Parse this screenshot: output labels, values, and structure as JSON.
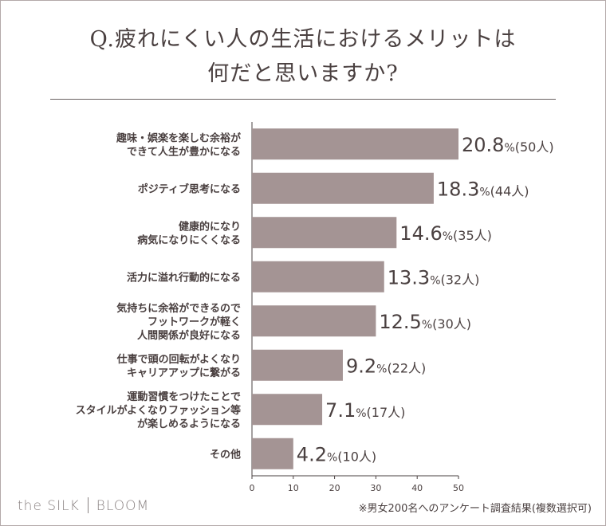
{
  "title_lines": [
    "Q.疲れにくい人の生活におけるメリットは",
    "何だと思いますか?"
  ],
  "chart_data": {
    "type": "bar",
    "orientation": "horizontal",
    "categories": [
      [
        "趣味・娯楽を楽しむ余裕が",
        "できて人生が豊かになる"
      ],
      [
        "ポジティブ思考になる"
      ],
      [
        "健康的になり",
        "病気になりにくくなる"
      ],
      [
        "活力に溢れ行動的になる"
      ],
      [
        "気持ちに余裕ができるので",
        "フットワークが軽く",
        "人間関係が良好になる"
      ],
      [
        "仕事で頭の回転がよくなり",
        "キャリアアップに繋がる"
      ],
      [
        "運動習慣をつけたことで",
        "スタイルがよくなりファッション等",
        "が楽しめるようになる"
      ],
      [
        "その他"
      ]
    ],
    "values": [
      50,
      44,
      35,
      32,
      30,
      22,
      17,
      10
    ],
    "percent_labels": [
      "20.8",
      "18.3",
      "14.6",
      "13.3",
      "12.5",
      "9.2",
      "7.1",
      "4.2"
    ],
    "count_labels": [
      "(50人)",
      "(44人)",
      "(35人)",
      "(32人)",
      "(30人)",
      "(22人)",
      "(17人)",
      "(10人)"
    ],
    "percent_sign": "%",
    "xlim": [
      0,
      50
    ],
    "xticks": [
      "0",
      "10",
      "20",
      "30",
      "40",
      "50"
    ],
    "bar_color": "#a49494",
    "text_color": "#4a4040",
    "grid": false
  },
  "footer": {
    "brand_left": "the SILK",
    "brand_right": "BLOOM",
    "note": "※男女200名へのアンケート調査結果(複数選択可)"
  }
}
